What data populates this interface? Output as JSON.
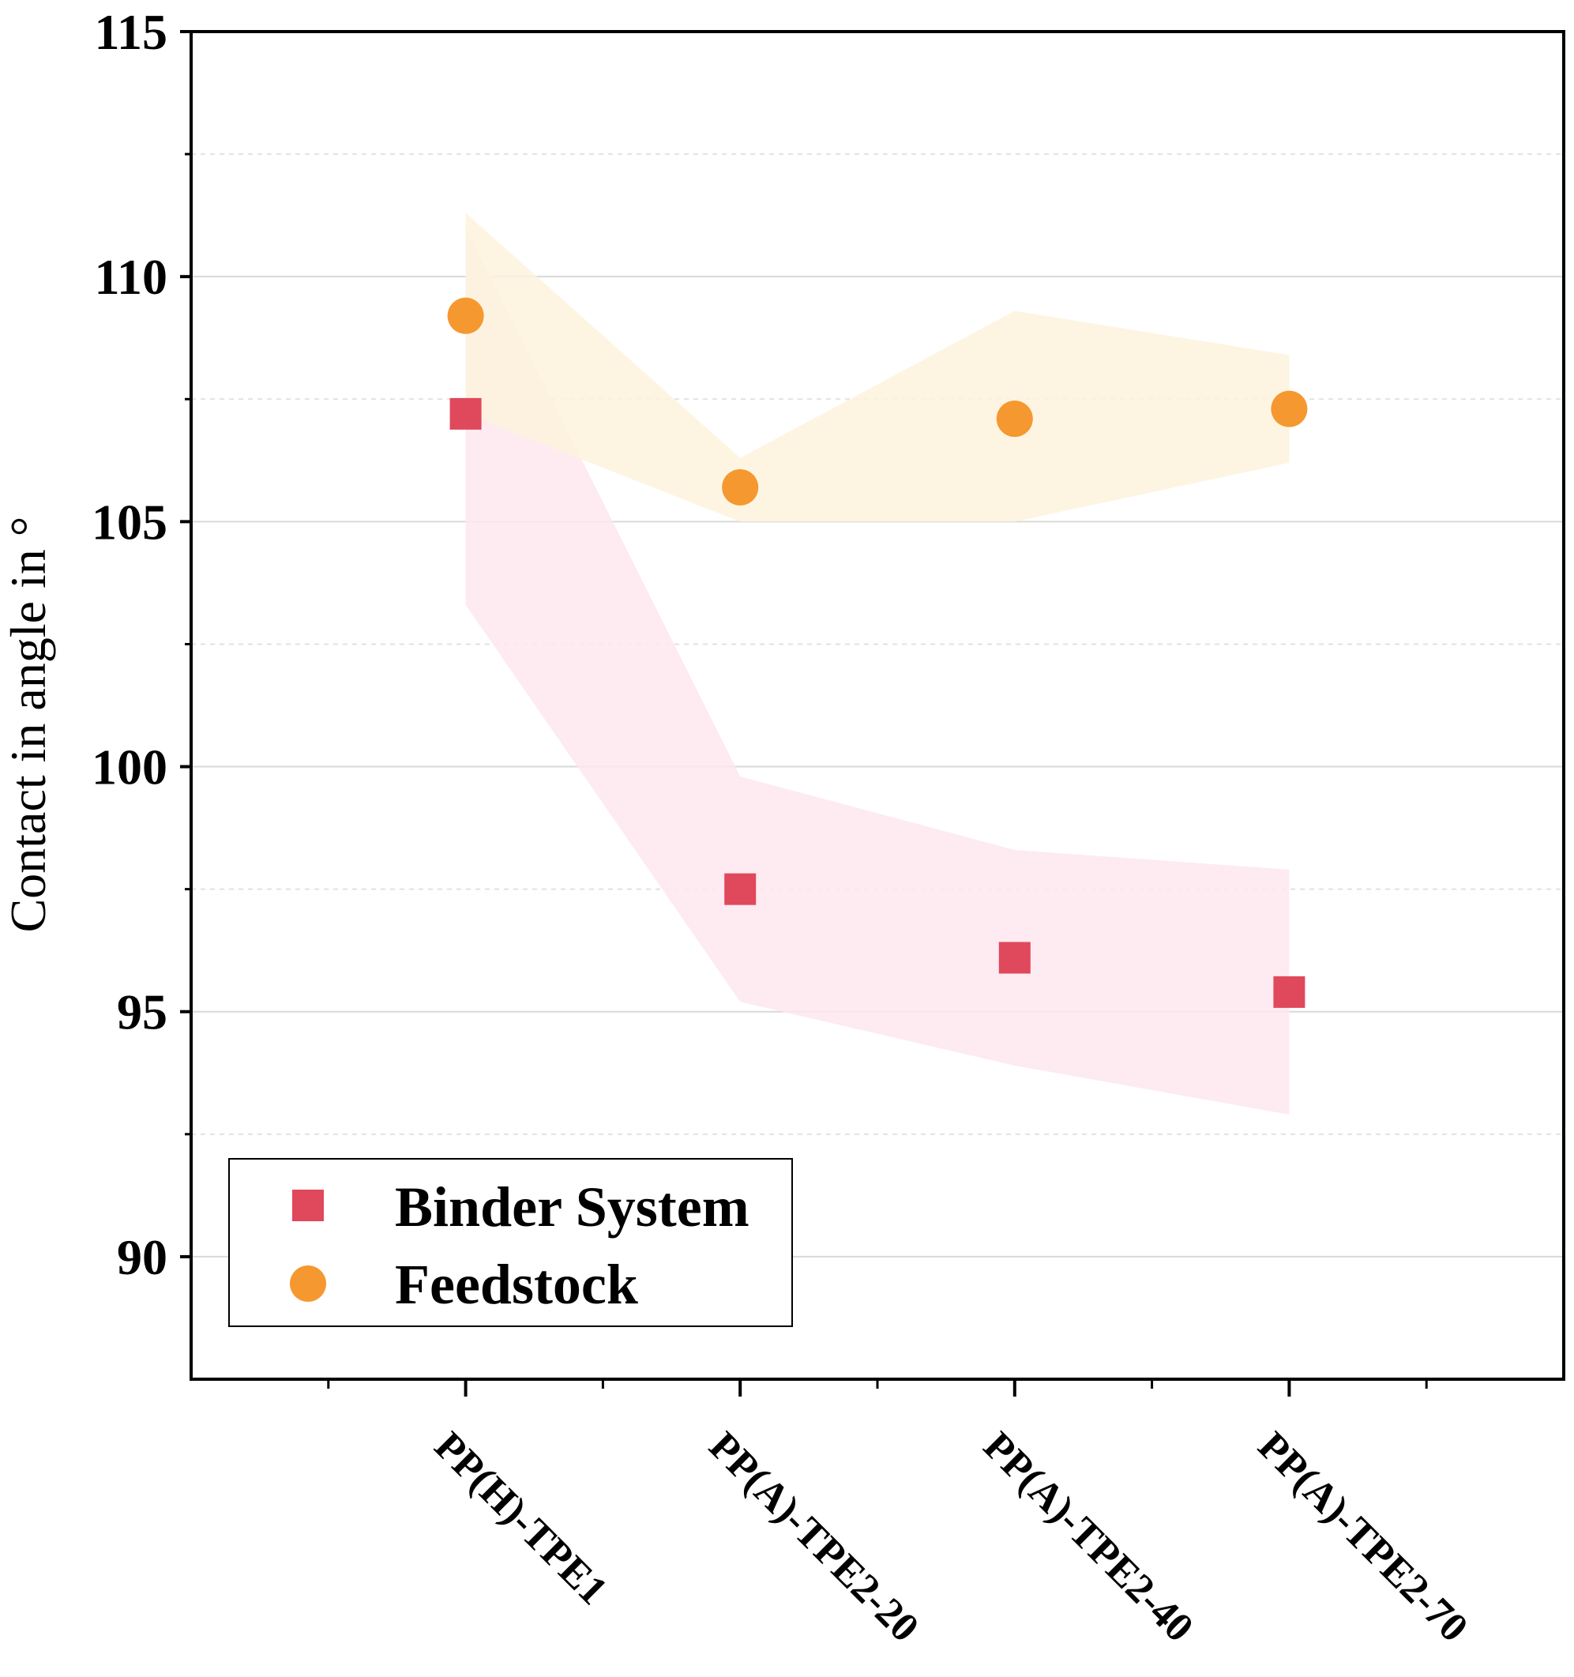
{
  "chart_data": {
    "type": "scatter",
    "title": "",
    "xlabel": "",
    "ylabel": "Contact in angle in °",
    "categories": [
      "PP(H)-TPE1",
      "PP(A)-TPE2-20",
      "PP(A)-TPE2-40",
      "PP(A)-TPE2-70"
    ],
    "ylim": [
      87.5,
      115
    ],
    "yticks": [
      90,
      95,
      100,
      105,
      110,
      115
    ],
    "yticks_minor": [
      92.5,
      97.5,
      102.5,
      107.5,
      112.5
    ],
    "grid": true,
    "legend": "bottom-left",
    "series": [
      {
        "name": "Binder System",
        "marker": "square",
        "color": "#e0485c",
        "band_color": "#fde7ee",
        "values": [
          107.2,
          97.5,
          96.1,
          95.4
        ],
        "band_lower": [
          103.3,
          95.2,
          93.9,
          92.9
        ],
        "band_upper": [
          111.0,
          99.8,
          98.3,
          97.9
        ]
      },
      {
        "name": "Feedstock",
        "marker": "circle",
        "color": "#f5982f",
        "band_color": "#fdf3dd",
        "values": [
          109.2,
          105.7,
          107.1,
          107.3
        ],
        "band_lower": [
          107.2,
          105.0,
          105.0,
          106.2
        ],
        "band_upper": [
          111.3,
          106.3,
          109.3,
          108.4
        ]
      }
    ]
  }
}
